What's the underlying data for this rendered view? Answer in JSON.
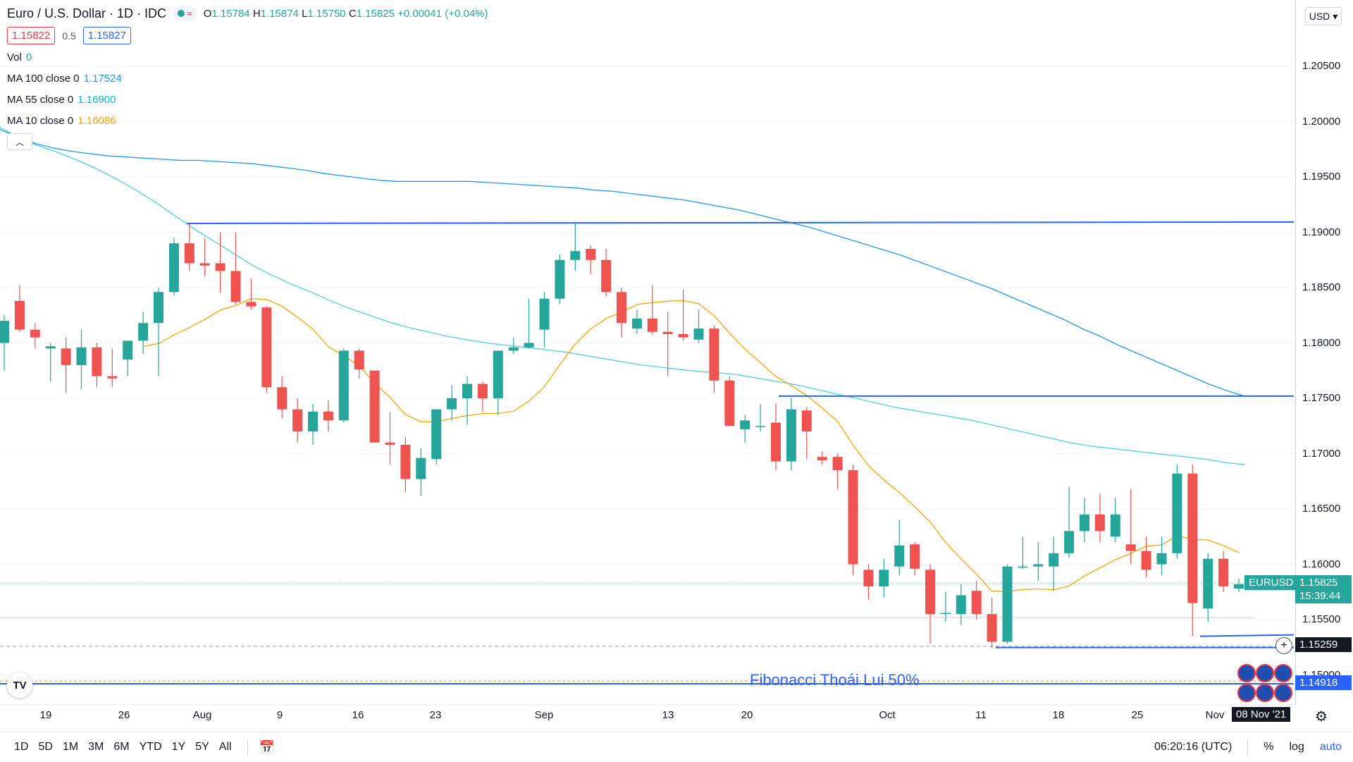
{
  "header": {
    "title": "Euro / U.S. Dollar · 1D · IDC",
    "ohlc": {
      "o_label": "O",
      "o": "1.15784",
      "h_label": "H",
      "h": "1.15874",
      "l_label": "L",
      "l": "1.15750",
      "c_label": "C",
      "c": "1.15825",
      "change": "+0.00041 (+0.04%)"
    },
    "sell_price": "1.15822",
    "spread": "0.5",
    "buy_price": "1.15827"
  },
  "indicators": [
    {
      "label": "Vol",
      "value": "0",
      "color": "#26a69a"
    },
    {
      "label": "MA 100 close 0",
      "value": "1.17524",
      "color": "#2196f3"
    },
    {
      "label": "MA 55 close 0",
      "value": "1.16900",
      "color": "#00bcd4"
    },
    {
      "label": "MA 10 close 0",
      "value": "1.16086",
      "color": "#f7a600"
    }
  ],
  "currency_selector": "USD",
  "price_axis": [
    "1.20500",
    "1.20000",
    "1.19500",
    "1.19000",
    "1.18500",
    "1.18000",
    "1.17500",
    "1.17000",
    "1.16500",
    "1.16000",
    "1.15500",
    "1.15000"
  ],
  "time_axis": [
    "19",
    "26",
    "Aug",
    "9",
    "16",
    "23",
    "Sep",
    "13",
    "20",
    "Oct",
    "11",
    "18",
    "25",
    "Nov"
  ],
  "tags": {
    "symbol": "EURUSD",
    "last_price": "1.15825",
    "countdown": "15:39:44",
    "crosshair_price": "1.15259",
    "fib_price": "1.14918",
    "date": "08 Nov '21"
  },
  "fib_label": "Fibonacci Thoái Lui 50%",
  "bottom_bar": {
    "timeframes": [
      "1D",
      "5D",
      "1M",
      "3M",
      "6M",
      "YTD",
      "1Y",
      "5Y",
      "All"
    ],
    "clock": "06:20:16 (UTC)",
    "percent": "%",
    "log": "log",
    "auto": "auto"
  },
  "icons": {
    "calendar": "calendar-range-icon",
    "settings": "gear-icon",
    "logo": "tradingview-logo-icon"
  },
  "colors": {
    "up": "#26a69a",
    "down": "#ef5350",
    "ma100": "#2196f3",
    "ma55": "#4dd0e1",
    "ma10": "#f7a600",
    "hline": "#2962ff"
  },
  "chart_data": {
    "type": "candlestick",
    "symbol": "EURUSD",
    "ylim": [
      1.148,
      1.2065
    ],
    "horizontal_lines": [
      1.1908,
      1.1752,
      1.1526,
      1.1492
    ],
    "candles": [
      {
        "o": 1.18,
        "h": 1.1825,
        "l": 1.1775,
        "c": 1.182
      },
      {
        "o": 1.1838,
        "h": 1.1852,
        "l": 1.181,
        "c": 1.1812
      },
      {
        "o": 1.1812,
        "h": 1.1818,
        "l": 1.1795,
        "c": 1.1805
      },
      {
        "o": 1.1795,
        "h": 1.18,
        "l": 1.1765,
        "c": 1.1797
      },
      {
        "o": 1.1795,
        "h": 1.1805,
        "l": 1.1755,
        "c": 1.178
      },
      {
        "o": 1.178,
        "h": 1.1812,
        "l": 1.1758,
        "c": 1.1796
      },
      {
        "o": 1.1796,
        "h": 1.18,
        "l": 1.176,
        "c": 1.177
      },
      {
        "o": 1.177,
        "h": 1.1795,
        "l": 1.176,
        "c": 1.1768
      },
      {
        "o": 1.1785,
        "h": 1.18,
        "l": 1.177,
        "c": 1.1802
      },
      {
        "o": 1.1802,
        "h": 1.1828,
        "l": 1.179,
        "c": 1.1818
      },
      {
        "o": 1.1818,
        "h": 1.185,
        "l": 1.177,
        "c": 1.1846
      },
      {
        "o": 1.1846,
        "h": 1.1895,
        "l": 1.1843,
        "c": 1.189
      },
      {
        "o": 1.189,
        "h": 1.1908,
        "l": 1.1865,
        "c": 1.1872
      },
      {
        "o": 1.1872,
        "h": 1.1895,
        "l": 1.186,
        "c": 1.187
      },
      {
        "o": 1.1872,
        "h": 1.19,
        "l": 1.1845,
        "c": 1.1865
      },
      {
        "o": 1.1865,
        "h": 1.19,
        "l": 1.1835,
        "c": 1.1837
      },
      {
        "o": 1.1837,
        "h": 1.1858,
        "l": 1.183,
        "c": 1.1833
      },
      {
        "o": 1.1832,
        "h": 1.1833,
        "l": 1.1755,
        "c": 1.176
      },
      {
        "o": 1.176,
        "h": 1.177,
        "l": 1.1732,
        "c": 1.174
      },
      {
        "o": 1.174,
        "h": 1.175,
        "l": 1.171,
        "c": 1.172
      },
      {
        "o": 1.172,
        "h": 1.1745,
        "l": 1.1708,
        "c": 1.1738
      },
      {
        "o": 1.1738,
        "h": 1.1748,
        "l": 1.172,
        "c": 1.173
      },
      {
        "o": 1.173,
        "h": 1.1795,
        "l": 1.1728,
        "c": 1.1793
      },
      {
        "o": 1.1793,
        "h": 1.1795,
        "l": 1.1768,
        "c": 1.1776
      },
      {
        "o": 1.1775,
        "h": 1.1775,
        "l": 1.171,
        "c": 1.171
      },
      {
        "o": 1.171,
        "h": 1.1738,
        "l": 1.169,
        "c": 1.1708
      },
      {
        "o": 1.1708,
        "h": 1.1715,
        "l": 1.1665,
        "c": 1.1677
      },
      {
        "o": 1.1677,
        "h": 1.1705,
        "l": 1.1662,
        "c": 1.1696
      },
      {
        "o": 1.1695,
        "h": 1.174,
        "l": 1.169,
        "c": 1.174
      },
      {
        "o": 1.174,
        "h": 1.1762,
        "l": 1.173,
        "c": 1.175
      },
      {
        "o": 1.175,
        "h": 1.177,
        "l": 1.1726,
        "c": 1.1763
      },
      {
        "o": 1.1763,
        "h": 1.1765,
        "l": 1.1738,
        "c": 1.175
      },
      {
        "o": 1.175,
        "h": 1.179,
        "l": 1.1735,
        "c": 1.1793
      },
      {
        "o": 1.1793,
        "h": 1.1805,
        "l": 1.179,
        "c": 1.1796
      },
      {
        "o": 1.1796,
        "h": 1.184,
        "l": 1.1795,
        "c": 1.18
      },
      {
        "o": 1.1812,
        "h": 1.1846,
        "l": 1.1796,
        "c": 1.184
      },
      {
        "o": 1.184,
        "h": 1.188,
        "l": 1.1835,
        "c": 1.1875
      },
      {
        "o": 1.1875,
        "h": 1.1908,
        "l": 1.1865,
        "c": 1.1883
      },
      {
        "o": 1.1885,
        "h": 1.1888,
        "l": 1.1862,
        "c": 1.1875
      },
      {
        "o": 1.1875,
        "h": 1.1885,
        "l": 1.1842,
        "c": 1.1846
      },
      {
        "o": 1.1846,
        "h": 1.185,
        "l": 1.1805,
        "c": 1.1818
      },
      {
        "o": 1.1813,
        "h": 1.183,
        "l": 1.1808,
        "c": 1.1822
      },
      {
        "o": 1.1822,
        "h": 1.1852,
        "l": 1.1808,
        "c": 1.181
      },
      {
        "o": 1.181,
        "h": 1.1828,
        "l": 1.177,
        "c": 1.1808
      },
      {
        "o": 1.1808,
        "h": 1.1848,
        "l": 1.1802,
        "c": 1.1805
      },
      {
        "o": 1.1803,
        "h": 1.183,
        "l": 1.18,
        "c": 1.1813
      },
      {
        "o": 1.1813,
        "h": 1.1816,
        "l": 1.1755,
        "c": 1.1766
      },
      {
        "o": 1.1766,
        "h": 1.177,
        "l": 1.1725,
        "c": 1.1725
      },
      {
        "o": 1.1722,
        "h": 1.1735,
        "l": 1.171,
        "c": 1.173
      },
      {
        "o": 1.1725,
        "h": 1.1745,
        "l": 1.172,
        "c": 1.1725
      },
      {
        "o": 1.1728,
        "h": 1.1745,
        "l": 1.1685,
        "c": 1.1693
      },
      {
        "o": 1.1693,
        "h": 1.175,
        "l": 1.1685,
        "c": 1.174
      },
      {
        "o": 1.1739,
        "h": 1.1742,
        "l": 1.1695,
        "c": 1.172
      },
      {
        "o": 1.1697,
        "h": 1.1702,
        "l": 1.169,
        "c": 1.1694
      },
      {
        "o": 1.1697,
        "h": 1.17,
        "l": 1.1668,
        "c": 1.1685
      },
      {
        "o": 1.1685,
        "h": 1.169,
        "l": 1.159,
        "c": 1.16
      },
      {
        "o": 1.1595,
        "h": 1.16,
        "l": 1.1568,
        "c": 1.158
      },
      {
        "o": 1.158,
        "h": 1.1605,
        "l": 1.157,
        "c": 1.1595
      },
      {
        "o": 1.1598,
        "h": 1.164,
        "l": 1.159,
        "c": 1.1617
      },
      {
        "o": 1.1618,
        "h": 1.162,
        "l": 1.159,
        "c": 1.1596
      },
      {
        "o": 1.1595,
        "h": 1.16,
        "l": 1.1528,
        "c": 1.1555
      },
      {
        "o": 1.1555,
        "h": 1.1575,
        "l": 1.1548,
        "c": 1.1556
      },
      {
        "o": 1.1555,
        "h": 1.1582,
        "l": 1.1545,
        "c": 1.1572
      },
      {
        "o": 1.1576,
        "h": 1.1585,
        "l": 1.155,
        "c": 1.1555
      },
      {
        "o": 1.1555,
        "h": 1.157,
        "l": 1.1524,
        "c": 1.153
      },
      {
        "o": 1.153,
        "h": 1.16,
        "l": 1.1528,
        "c": 1.1598
      },
      {
        "o": 1.1598,
        "h": 1.1625,
        "l": 1.1596,
        "c": 1.1598
      },
      {
        "o": 1.1598,
        "h": 1.162,
        "l": 1.1585,
        "c": 1.16
      },
      {
        "o": 1.1598,
        "h": 1.1625,
        "l": 1.1576,
        "c": 1.161
      },
      {
        "o": 1.161,
        "h": 1.167,
        "l": 1.1606,
        "c": 1.163
      },
      {
        "o": 1.163,
        "h": 1.166,
        "l": 1.162,
        "c": 1.1645
      },
      {
        "o": 1.1645,
        "h": 1.1664,
        "l": 1.162,
        "c": 1.163
      },
      {
        "o": 1.1625,
        "h": 1.166,
        "l": 1.162,
        "c": 1.1645
      },
      {
        "o": 1.1618,
        "h": 1.1668,
        "l": 1.16,
        "c": 1.1612
      },
      {
        "o": 1.1612,
        "h": 1.1625,
        "l": 1.1588,
        "c": 1.1595
      },
      {
        "o": 1.16,
        "h": 1.1625,
        "l": 1.159,
        "c": 1.161
      },
      {
        "o": 1.161,
        "h": 1.169,
        "l": 1.1605,
        "c": 1.1682
      },
      {
        "o": 1.1682,
        "h": 1.169,
        "l": 1.1535,
        "c": 1.1565
      },
      {
        "o": 1.156,
        "h": 1.161,
        "l": 1.1548,
        "c": 1.1605
      },
      {
        "o": 1.1605,
        "h": 1.1612,
        "l": 1.1575,
        "c": 1.158
      },
      {
        "o": 1.1578,
        "h": 1.1587,
        "l": 1.1575,
        "c": 1.1582
      }
    ]
  }
}
